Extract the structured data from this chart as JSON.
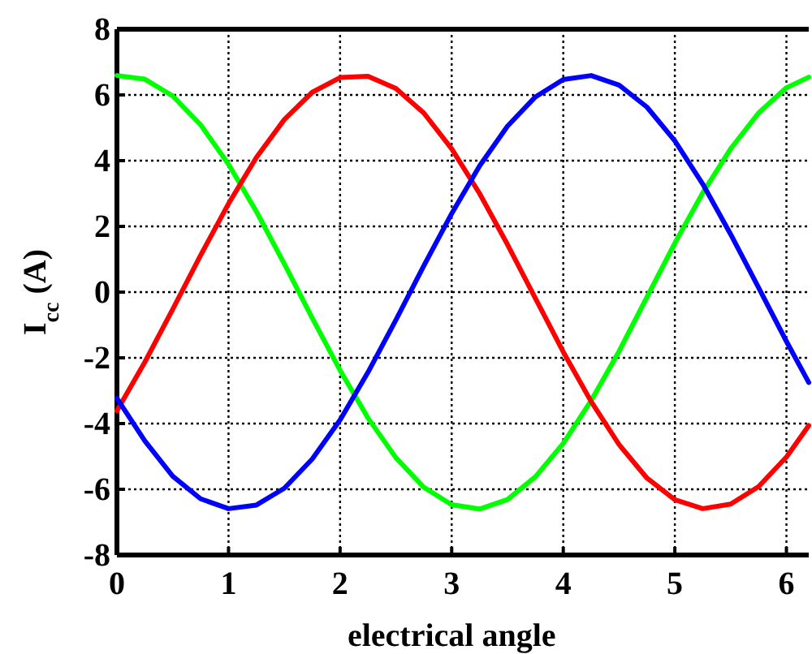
{
  "chart_data": {
    "type": "line",
    "xlabel": "electrical angle",
    "ylabel": "I$_{cc}$ (A)",
    "x": [
      0,
      0.25,
      0.5,
      0.75,
      1,
      1.25,
      1.5,
      1.75,
      2,
      2.25,
      2.5,
      2.75,
      3,
      3.25,
      3.5,
      3.75,
      4,
      4.25,
      4.5,
      4.75,
      5,
      5.25,
      5.5,
      5.75,
      6,
      6.2
    ],
    "series": [
      {
        "color": "#00ff00",
        "values": [
          6.59,
          6.48,
          5.97,
          5.09,
          3.89,
          2.45,
          0.86,
          -0.79,
          -2.38,
          -3.83,
          -5.04,
          -5.94,
          -6.47,
          -6.6,
          -6.31,
          -5.62,
          -4.6,
          -3.3,
          -1.8,
          -0.15,
          1.49,
          3.02,
          4.36,
          5.45,
          6.22,
          6.54
        ]
      },
      {
        "color": "#ff0000",
        "values": [
          -3.61,
          -2.13,
          -0.52,
          1.12,
          2.69,
          4.1,
          5.25,
          6.08,
          6.53,
          6.57,
          6.2,
          5.45,
          4.36,
          3.0,
          1.45,
          -0.19,
          -1.82,
          -3.33,
          -4.64,
          -5.66,
          -6.32,
          -6.59,
          -6.45,
          -5.92,
          -5.02,
          -4.06
        ]
      },
      {
        "color": "#0000ff",
        "values": [
          -3.23,
          -4.53,
          -5.6,
          -6.29,
          -6.59,
          -6.48,
          -5.97,
          -5.08,
          -3.89,
          -2.44,
          -0.85,
          0.8,
          2.39,
          3.84,
          5.05,
          5.94,
          6.47,
          6.59,
          6.3,
          5.63,
          4.6,
          3.29,
          1.76,
          0.14,
          -1.5,
          -2.75
        ]
      }
    ],
    "xlim": [
      0,
      6.2
    ],
    "xticks": [
      0,
      1,
      2,
      3,
      4,
      5,
      6
    ],
    "ylim": [
      -8,
      8
    ],
    "yticks": [
      -8,
      -6,
      -4,
      -2,
      0,
      2,
      4,
      6,
      8
    ],
    "grid": true,
    "line_style": "solid",
    "marker": "none"
  }
}
